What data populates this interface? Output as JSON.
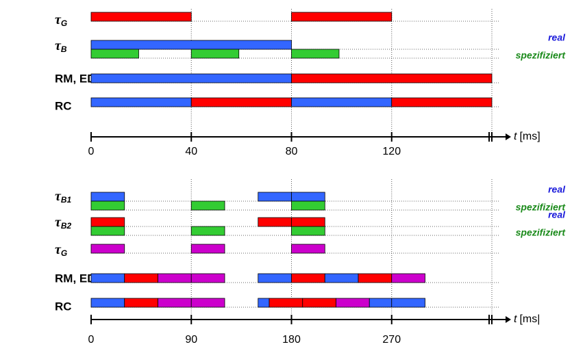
{
  "chart_data": [
    {
      "type": "gantt",
      "xlim": [
        0,
        160
      ],
      "xticks": [
        0,
        40,
        80,
        120
      ],
      "xlabel_var": "t",
      "xlabel_unit": "[ms]",
      "rows": [
        {
          "label": "τ",
          "subscript": "G",
          "lanes": [
            {
              "segments": [
                {
                  "start": 0,
                  "end": 40,
                  "color": "#ff0000"
                },
                {
                  "start": 80,
                  "end": 120,
                  "color": "#ff0000"
                }
              ]
            }
          ]
        },
        {
          "label": "τ",
          "subscript": "B",
          "lanes": [
            {
              "legend": "real",
              "legend_color": "#1a1adb",
              "segments": [
                {
                  "start": 0,
                  "end": 80,
                  "color": "#3366ff"
                }
              ]
            },
            {
              "legend": "spezifiziert",
              "legend_color": "#1a8a1a",
              "segments": [
                {
                  "start": 0,
                  "end": 19,
                  "color": "#33cc33"
                },
                {
                  "start": 40,
                  "end": 59,
                  "color": "#33cc33"
                },
                {
                  "start": 80,
                  "end": 99,
                  "color": "#33cc33"
                }
              ]
            }
          ]
        },
        {
          "label": "RM, EDF",
          "lanes": [
            {
              "segments": [
                {
                  "start": 0,
                  "end": 80,
                  "color": "#3366ff"
                },
                {
                  "start": 80,
                  "end": 160,
                  "color": "#ff0000"
                }
              ]
            }
          ]
        },
        {
          "label": "RC",
          "lanes": [
            {
              "segments": [
                {
                  "start": 0,
                  "end": 40,
                  "color": "#3366ff"
                },
                {
                  "start": 40,
                  "end": 80,
                  "color": "#ff0000"
                },
                {
                  "start": 80,
                  "end": 120,
                  "color": "#3366ff"
                },
                {
                  "start": 120,
                  "end": 160,
                  "color": "#ff0000"
                }
              ]
            }
          ]
        }
      ]
    },
    {
      "type": "gantt",
      "xlim": [
        0,
        360
      ],
      "xticks": [
        0,
        90,
        180,
        270
      ],
      "xlabel_var": "t",
      "xlabel_unit": "[ms|",
      "rows": [
        {
          "label": "τ",
          "subscript": "B1",
          "lanes": [
            {
              "legend": "real",
              "legend_color": "#1a1adb",
              "segments": [
                {
                  "start": 0,
                  "end": 30,
                  "color": "#3366ff"
                },
                {
                  "start": 150,
                  "end": 180,
                  "color": "#3366ff"
                },
                {
                  "start": 180,
                  "end": 210,
                  "color": "#3366ff"
                }
              ]
            },
            {
              "legend": "spezifiziert",
              "legend_color": "#1a8a1a",
              "segments": [
                {
                  "start": 0,
                  "end": 30,
                  "color": "#33cc33"
                },
                {
                  "start": 90,
                  "end": 120,
                  "color": "#33cc33"
                },
                {
                  "start": 180,
                  "end": 210,
                  "color": "#33cc33"
                }
              ]
            }
          ]
        },
        {
          "label": "τ",
          "subscript": "B2",
          "lanes": [
            {
              "legend": "real",
              "legend_color": "#1a1adb",
              "segments": [
                {
                  "start": 0,
                  "end": 30,
                  "color": "#ff0000"
                },
                {
                  "start": 150,
                  "end": 180,
                  "color": "#ff0000"
                },
                {
                  "start": 180,
                  "end": 210,
                  "color": "#ff0000"
                }
              ]
            },
            {
              "legend": "spezifiziert",
              "legend_color": "#1a8a1a",
              "segments": [
                {
                  "start": 0,
                  "end": 30,
                  "color": "#33cc33"
                },
                {
                  "start": 90,
                  "end": 120,
                  "color": "#33cc33"
                },
                {
                  "start": 180,
                  "end": 210,
                  "color": "#33cc33"
                }
              ]
            }
          ]
        },
        {
          "label": "τ",
          "subscript": "G",
          "lanes": [
            {
              "segments": [
                {
                  "start": 0,
                  "end": 30,
                  "color": "#cc00cc"
                },
                {
                  "start": 90,
                  "end": 120,
                  "color": "#cc00cc"
                },
                {
                  "start": 180,
                  "end": 210,
                  "color": "#cc00cc"
                }
              ]
            }
          ]
        },
        {
          "label": "RM, EDF",
          "lanes": [
            {
              "segments": [
                {
                  "start": 0,
                  "end": 30,
                  "color": "#3366ff"
                },
                {
                  "start": 30,
                  "end": 60,
                  "color": "#ff0000"
                },
                {
                  "start": 60,
                  "end": 90,
                  "color": "#cc00cc"
                },
                {
                  "start": 90,
                  "end": 120,
                  "color": "#cc00cc"
                },
                {
                  "start": 150,
                  "end": 180,
                  "color": "#3366ff"
                },
                {
                  "start": 180,
                  "end": 210,
                  "color": "#ff0000"
                },
                {
                  "start": 210,
                  "end": 240,
                  "color": "#3366ff"
                },
                {
                  "start": 240,
                  "end": 270,
                  "color": "#ff0000"
                },
                {
                  "start": 270,
                  "end": 300,
                  "color": "#cc00cc"
                }
              ]
            }
          ]
        },
        {
          "label": "RC",
          "lanes": [
            {
              "segments": [
                {
                  "start": 0,
                  "end": 30,
                  "color": "#3366ff"
                },
                {
                  "start": 30,
                  "end": 60,
                  "color": "#ff0000"
                },
                {
                  "start": 60,
                  "end": 90,
                  "color": "#cc00cc"
                },
                {
                  "start": 90,
                  "end": 120,
                  "color": "#cc00cc"
                },
                {
                  "start": 150,
                  "end": 160,
                  "color": "#3366ff"
                },
                {
                  "start": 160,
                  "end": 190,
                  "color": "#ff0000"
                },
                {
                  "start": 190,
                  "end": 220,
                  "color": "#ff0000"
                },
                {
                  "start": 220,
                  "end": 250,
                  "color": "#cc00cc"
                },
                {
                  "start": 250,
                  "end": 270,
                  "color": "#3366ff"
                },
                {
                  "start": 270,
                  "end": 300,
                  "color": "#3366ff"
                }
              ]
            }
          ]
        }
      ]
    }
  ]
}
